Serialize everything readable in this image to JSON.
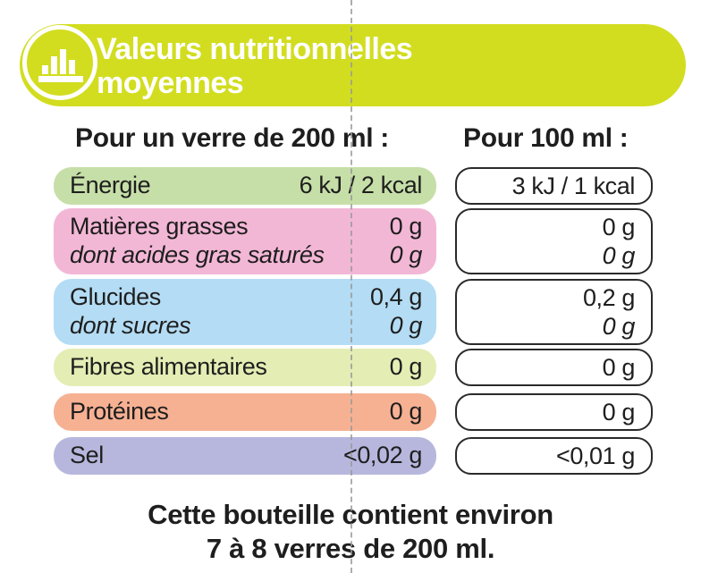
{
  "header": {
    "title_line1": "Valeurs nutritionnelles",
    "title_line2": "moyennes",
    "icon": "bar-chart-icon"
  },
  "columns": {
    "per_glass": "Pour un verre de 200 ml :",
    "per_100": "Pour 100 ml :"
  },
  "rows": [
    {
      "label": "Énergie",
      "glass": "6 kJ / 2 kcal",
      "per100": "3 kJ / 1 kcal",
      "color": "#c6dfa8"
    },
    {
      "label": "Matières grasses",
      "glass": "0 g",
      "per100": "0 g",
      "sub_label": "dont acides gras saturés",
      "sub_glass": "0 g",
      "sub_per100": "0 g",
      "color": "#f3b7d6"
    },
    {
      "label": "Glucides",
      "glass": "0,4 g",
      "per100": "0,2 g",
      "sub_label": "dont sucres",
      "sub_glass": "0 g",
      "sub_per100": "0 g",
      "color": "#b4dcf4"
    },
    {
      "label": "Fibres alimentaires",
      "glass": "0 g",
      "per100": "0 g",
      "color": "#e4edb4"
    },
    {
      "label": "Protéines",
      "glass": "0 g",
      "per100": "0 g",
      "color": "#f6b193"
    },
    {
      "label": "Sel",
      "glass": "<0,02 g",
      "per100": "<0,01 g",
      "color": "#b7b7de"
    }
  ],
  "footer": {
    "line1": "Cette bouteille contient environ",
    "line2": "7 à 8 verres de 200 ml."
  }
}
